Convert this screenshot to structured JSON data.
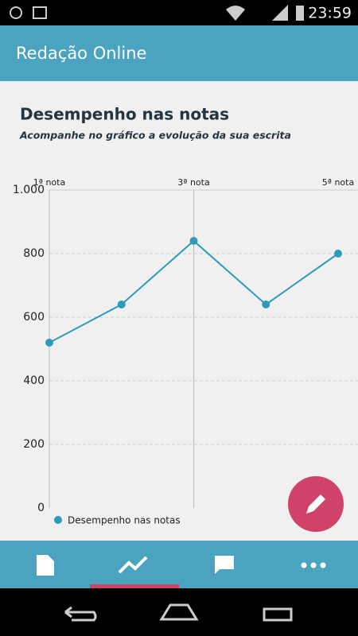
{
  "status_bar": {
    "time": "23:59"
  },
  "app_bar": {
    "title": "Redação Online"
  },
  "content": {
    "heading": "Desempenho nas notas",
    "subheading": "Acompanhe no gráfico a evolução da sua escrita"
  },
  "chart_data": {
    "type": "line",
    "categories": [
      "1ª nota",
      null,
      "3ª nota",
      null,
      "5ª nota"
    ],
    "series": [
      {
        "name": "Desempenho nas notas",
        "color": "#2e9bb8",
        "values": [
          520,
          640,
          840,
          640,
          800
        ]
      }
    ],
    "ylim": [
      0,
      1000
    ],
    "yticks": [
      0,
      200,
      400,
      600,
      800,
      {
        "value": 1000,
        "label": "1.000"
      }
    ],
    "grid": true
  }
}
